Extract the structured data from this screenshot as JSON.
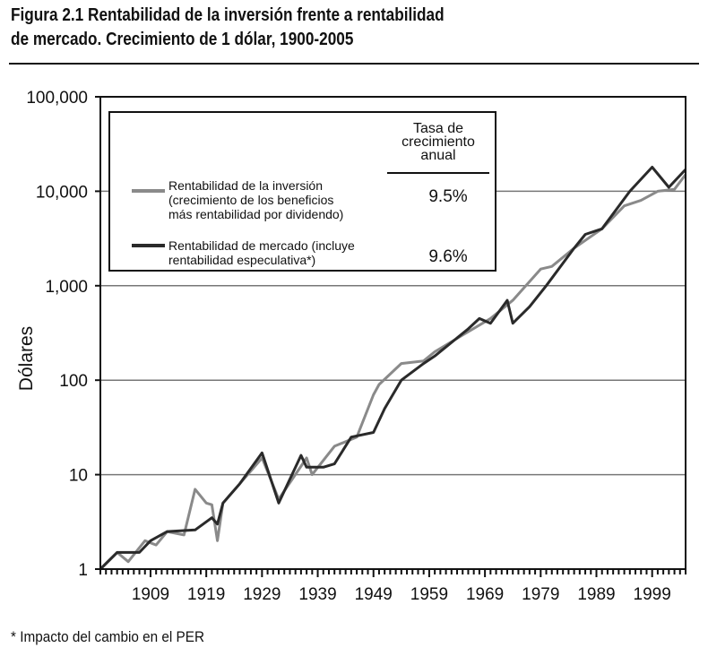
{
  "title_line1": "Figura 2.1 Rentabilidad de la inversión frente a rentabilidad",
  "title_line2": "de mercado. Crecimiento de 1 dólar, 1900-2005",
  "footnote": "* Impacto del cambio en el PER",
  "chart_data": {
    "type": "line",
    "ylabel": "Dólares",
    "xlabel": "",
    "yscale": "log",
    "ylim": [
      1,
      100000
    ],
    "xlim": [
      1900,
      2005
    ],
    "yticks": [
      "1",
      "10",
      "100",
      "1,000",
      "10,000",
      "100,000"
    ],
    "xticks": [
      "1909",
      "1919",
      "1929",
      "1939",
      "1949",
      "1959",
      "1969",
      "1979",
      "1989",
      "1999"
    ],
    "grid": "horizontal",
    "legend": {
      "placement": "top-left",
      "header": [
        "Tasa de",
        "crecimiento",
        "anual"
      ],
      "entries": [
        {
          "label": [
            "Rentabilidad de la inversión",
            "(crecimiento de los beneficios",
            "más rentabilidad por dividendo)"
          ],
          "rate": "9.5%"
        },
        {
          "label": [
            "Rentabilidad de mercado (incluye",
            "rentabilidad especulativa*)"
          ],
          "rate": "9.6%"
        }
      ]
    },
    "series": [
      {
        "name": "Rentabilidad de la inversión",
        "color": "#8a8a8a",
        "x": [
          1900,
          1903,
          1905,
          1908,
          1910,
          1912,
          1915,
          1917,
          1919,
          1920,
          1921,
          1922,
          1925,
          1929,
          1932,
          1937,
          1938,
          1942,
          1946,
          1949,
          1950,
          1954,
          1958,
          1960,
          1965,
          1970,
          1974,
          1979,
          1981,
          1985,
          1990,
          1994,
          1997,
          2000,
          2003,
          2005
        ],
        "y": [
          1,
          1.5,
          1.2,
          2,
          1.8,
          2.5,
          2.3,
          7,
          5,
          4.8,
          2,
          5,
          8,
          15,
          5.5,
          15,
          10,
          20,
          25,
          70,
          90,
          150,
          160,
          200,
          300,
          450,
          700,
          1500,
          1600,
          2500,
          4000,
          7000,
          8000,
          10000,
          10500,
          15000
        ]
      },
      {
        "name": "Rentabilidad de mercado",
        "color": "#2a2a2a",
        "x": [
          1900,
          1903,
          1907,
          1909,
          1912,
          1917,
          1920,
          1921,
          1922,
          1925,
          1929,
          1932,
          1936,
          1937,
          1940,
          1942,
          1945,
          1949,
          1951,
          1954,
          1958,
          1960,
          1966,
          1968,
          1970,
          1973,
          1974,
          1977,
          1980,
          1985,
          1987,
          1990,
          1995,
          1999,
          2002,
          2005
        ],
        "y": [
          1,
          1.5,
          1.5,
          2,
          2.5,
          2.6,
          3.5,
          3,
          5,
          8,
          17,
          5,
          16,
          12,
          12,
          13,
          25,
          28,
          50,
          100,
          150,
          180,
          350,
          450,
          400,
          700,
          400,
          600,
          1000,
          2500,
          3500,
          4000,
          10000,
          18000,
          11000,
          17000
        ]
      }
    ]
  }
}
